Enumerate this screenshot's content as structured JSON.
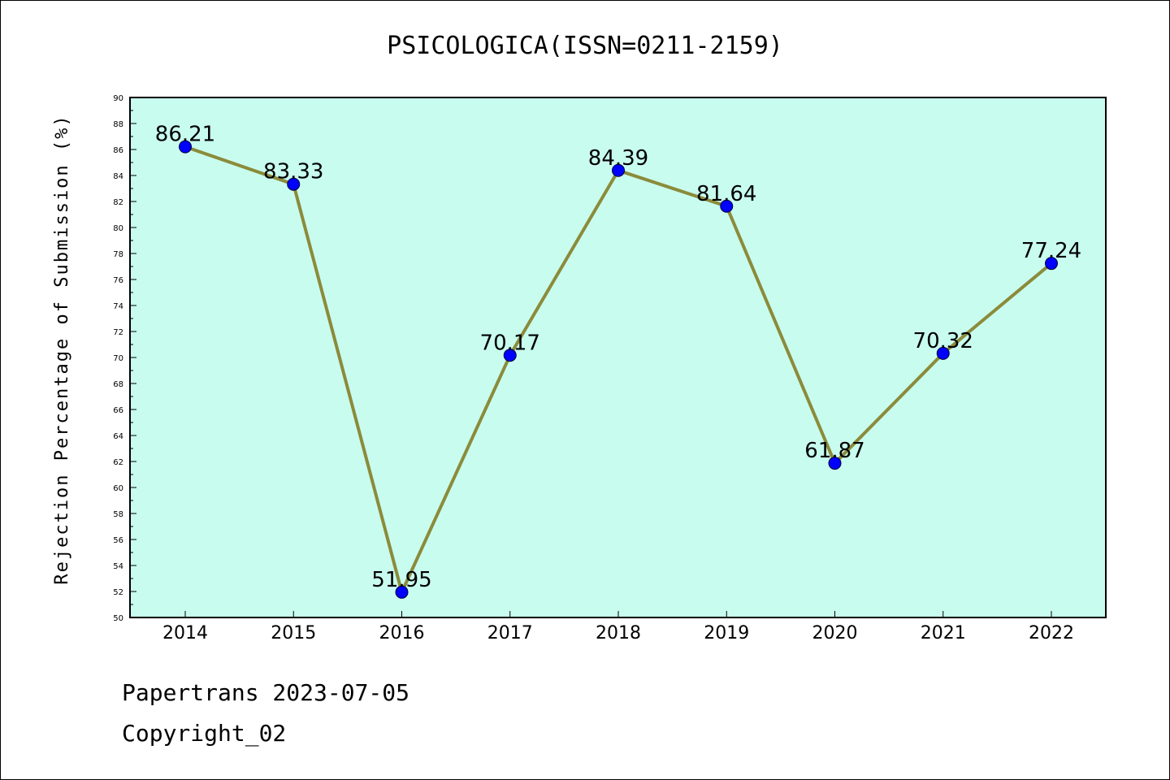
{
  "chart_data": {
    "type": "line",
    "title": "PSICOLOGICA(ISSN=0211-2159)",
    "xlabel": "",
    "ylabel": "Rejection Percentage of Submission (%)",
    "categories": [
      "2014",
      "2015",
      "2016",
      "2017",
      "2018",
      "2019",
      "2020",
      "2021",
      "2022"
    ],
    "values": [
      86.21,
      83.33,
      51.95,
      70.17,
      84.39,
      81.64,
      61.87,
      70.32,
      77.24
    ],
    "data_labels": [
      "86.21",
      "83.33",
      "51.95",
      "70.17",
      "84.39",
      "81.64",
      "61.87",
      "70.32",
      "77.24"
    ],
    "ylim": [
      50,
      90
    ],
    "yticks": [
      "50",
      "52",
      "54",
      "56",
      "58",
      "60",
      "62",
      "64",
      "66",
      "68",
      "70",
      "72",
      "74",
      "76",
      "78",
      "80",
      "82",
      "84",
      "86",
      "88",
      "90"
    ],
    "grid": false,
    "legend": "none",
    "colors": {
      "plot_background": "#c8fcef",
      "line": "#8b8b3a",
      "marker": "#0000ff"
    }
  },
  "footer": {
    "line1": "Papertrans 2023-07-05",
    "line2": "Copyright_02"
  }
}
